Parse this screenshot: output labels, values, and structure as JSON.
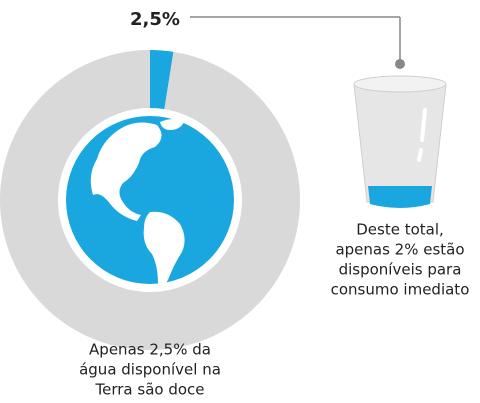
{
  "chart_data": {
    "type": "donut",
    "values": [
      2.5,
      97.5
    ],
    "value_labels": [
      "2,5%",
      null
    ],
    "colors": [
      "#1aa7e0",
      "#d9d9d9"
    ],
    "glass_note": [
      "Deste total,",
      "apenas 2% estão",
      "disponíveis para",
      "consumo imediato"
    ],
    "caption": [
      "Apenas 2,5% da",
      "água disponível na",
      "Terra são doce"
    ]
  }
}
